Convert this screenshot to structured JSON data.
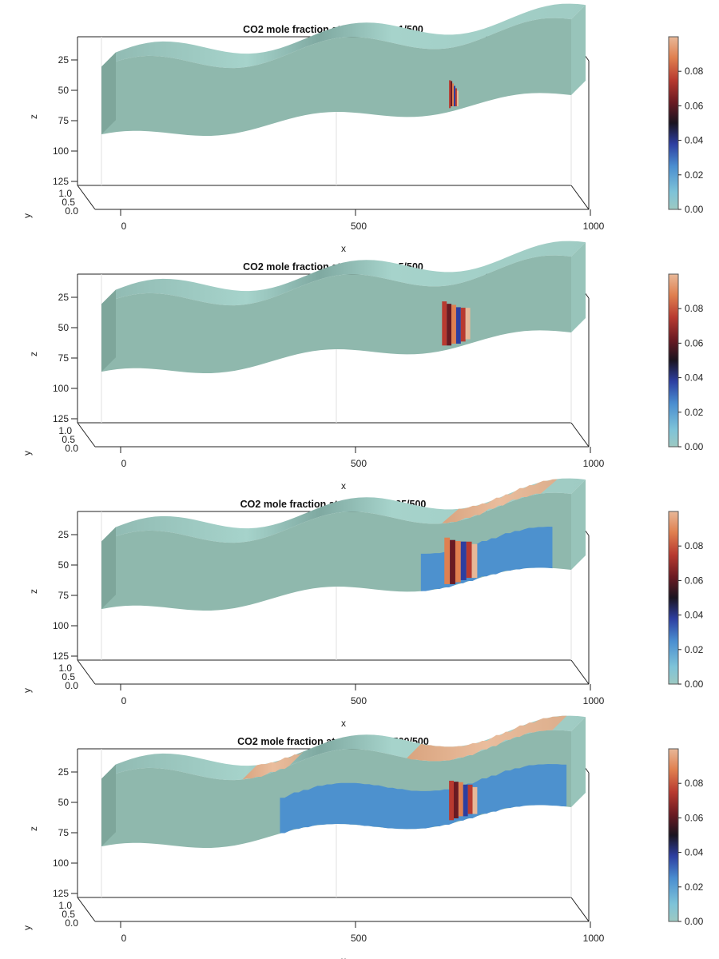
{
  "colors": {
    "cmap": [
      "#9dc9c2",
      "#7ec3d8",
      "#4a8ed0",
      "#2d3ea0",
      "#1a1420",
      "#6a1a22",
      "#b83a30",
      "#e08050",
      "#e8b898"
    ],
    "background": "#ffffff"
  },
  "chart_data": [
    {
      "type": "heatmap",
      "title": "CO2 mole fraction at report step 1/500",
      "xlabel": "x",
      "ylabel": "y",
      "zlabel": "z",
      "x_ticks": [
        "0",
        "500",
        "1000"
      ],
      "y_ticks": [
        "1.0",
        "0.5",
        "0.0"
      ],
      "z_ticks": [
        "25",
        "50",
        "75",
        "100",
        "125"
      ],
      "colorbar_ticks": [
        "0.08",
        "0.06",
        "0.04",
        "0.02",
        "0.00"
      ],
      "colorbar_range": [
        0.0,
        0.1
      ],
      "step": 1,
      "total_steps": 500,
      "plumes": [
        {
          "x": [
            740,
            760
          ],
          "z_top": 80,
          "z_bottom": 118,
          "value": 0.07
        }
      ],
      "cap_plume": null,
      "blue_spread": null
    },
    {
      "type": "heatmap",
      "title": "CO2 mole fraction at report step 5/500",
      "xlabel": "x",
      "ylabel": "y",
      "zlabel": "z",
      "x_ticks": [
        "0",
        "500",
        "1000"
      ],
      "y_ticks": [
        "1.0",
        "0.5",
        "0.0"
      ],
      "z_ticks": [
        "25",
        "50",
        "75",
        "100",
        "125"
      ],
      "colorbar_ticks": [
        "0.08",
        "0.06",
        "0.04",
        "0.02",
        "0.00"
      ],
      "colorbar_range": [
        0.0,
        0.1
      ],
      "step": 5,
      "total_steps": 500,
      "plumes": [
        {
          "x": [
            725,
            785
          ],
          "z_top": 52,
          "z_bottom": 118,
          "value": 0.075
        }
      ],
      "cap_plume": null,
      "blue_spread": null
    },
    {
      "type": "heatmap",
      "title": "CO2 mole fraction at report step 25/500",
      "xlabel": "x",
      "ylabel": "y",
      "zlabel": "z",
      "x_ticks": [
        "0",
        "500",
        "1000"
      ],
      "y_ticks": [
        "1.0",
        "0.5",
        "0.0"
      ],
      "z_ticks": [
        "25",
        "50",
        "75",
        "100",
        "125"
      ],
      "colorbar_ticks": [
        "0.08",
        "0.06",
        "0.04",
        "0.02",
        "0.00"
      ],
      "colorbar_range": [
        0.0,
        0.1
      ],
      "step": 25,
      "total_steps": 500,
      "plumes": [
        {
          "x": [
            730,
            800
          ],
          "z_top": 50,
          "z_bottom": 120,
          "value": 0.085
        }
      ],
      "cap_plume": {
        "x": [
          725,
          940
        ],
        "value": 0.09
      },
      "blue_spread": {
        "x": [
          680,
          960
        ],
        "z_top": 95,
        "z_bottom": 125,
        "value": 0.02
      }
    },
    {
      "type": "heatmap",
      "title": "CO2 mole fraction at report step 500/500",
      "xlabel": "x",
      "ylabel": "y",
      "zlabel": "z",
      "x_ticks": [
        "0",
        "500",
        "1000"
      ],
      "y_ticks": [
        "1.0",
        "0.5",
        "0.0"
      ],
      "z_ticks": [
        "25",
        "50",
        "75",
        "100",
        "125"
      ],
      "colorbar_ticks": [
        "0.08",
        "0.06",
        "0.04",
        "0.02",
        "0.00"
      ],
      "colorbar_range": [
        0.0,
        0.1
      ],
      "step": 500,
      "total_steps": 500,
      "plumes": [
        {
          "x": [
            740,
            800
          ],
          "z_top": 60,
          "z_bottom": 118,
          "value": 0.08
        }
      ],
      "cap_plume": {
        "x": [
          300,
          400
        ],
        "value": 0.09
      },
      "cap_plume_2": {
        "x": [
          650,
          960
        ],
        "value": 0.09
      },
      "blue_spread": {
        "x": [
          380,
          990
        ],
        "z_top": 85,
        "z_bottom": 130,
        "value": 0.02
      }
    }
  ]
}
